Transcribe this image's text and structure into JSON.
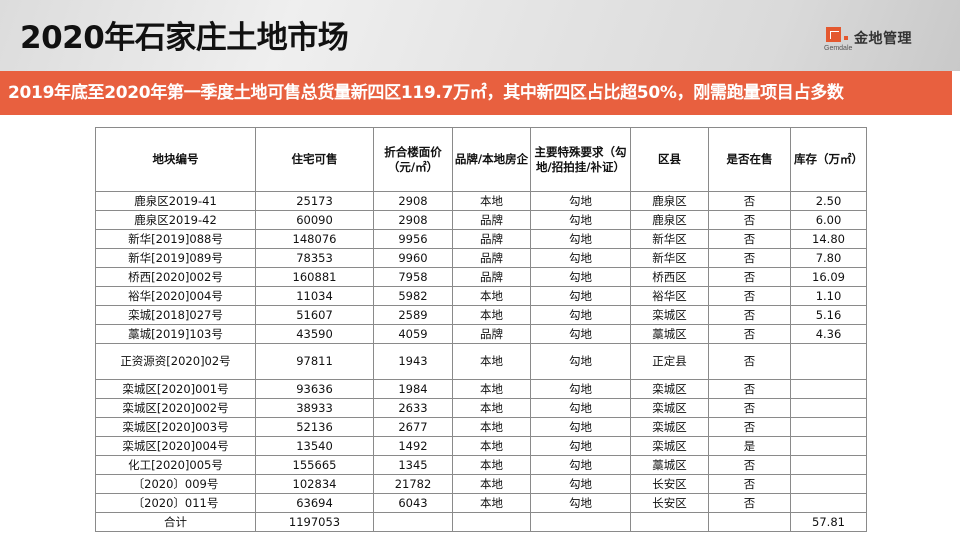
{
  "header": {
    "title": "2020年石家庄土地市场",
    "logo": {
      "icon": "gemdale-logo-icon",
      "english": "Gemdale",
      "chinese": "金地管理",
      "color": "#e4582f"
    }
  },
  "banner": {
    "text": "2019年底至2020年第一季度土地可售总货量新四区119.7万㎡，其中新四区占比超50%，刚需跑量项目占多数",
    "background": "#e8603f"
  },
  "table": {
    "columns": [
      "地块编号",
      "住宅可售",
      "折合楼面价（元/㎡）",
      "品牌/本地房企",
      "主要特殊要求（勾地/招拍挂/补证）",
      "区县",
      "是否在售",
      "库存（万㎡）"
    ],
    "rows": [
      [
        "鹿泉区2019-41",
        "25173",
        "2908",
        "本地",
        "勾地",
        "鹿泉区",
        "否",
        "2.50"
      ],
      [
        "鹿泉区2019-42",
        "60090",
        "2908",
        "品牌",
        "勾地",
        "鹿泉区",
        "否",
        "6.00"
      ],
      [
        "新华[2019]088号",
        "148076",
        "9956",
        "品牌",
        "勾地",
        "新华区",
        "否",
        "14.80"
      ],
      [
        "新华[2019]089号",
        "78353",
        "9960",
        "品牌",
        "勾地",
        "新华区",
        "否",
        "7.80"
      ],
      [
        "桥西[2020]002号",
        "160881",
        "7958",
        "品牌",
        "勾地",
        "桥西区",
        "否",
        "16.09"
      ],
      [
        "裕华[2020]004号",
        "11034",
        "5982",
        "本地",
        "勾地",
        "裕华区",
        "否",
        "1.10"
      ],
      [
        "栾城[2018]027号",
        "51607",
        "2589",
        "本地",
        "勾地",
        "栾城区",
        "否",
        "5.16"
      ],
      [
        "藁城[2019]103号",
        "43590",
        "4059",
        "品牌",
        "勾地",
        "藁城区",
        "否",
        "4.36"
      ],
      [
        "正资源资[2020]02号",
        "97811",
        "1943",
        "本地",
        "勾地",
        "正定县",
        "否",
        ""
      ],
      [
        "栾城区[2020]001号",
        "93636",
        "1984",
        "本地",
        "勾地",
        "栾城区",
        "否",
        ""
      ],
      [
        "栾城区[2020]002号",
        "38933",
        "2633",
        "本地",
        "勾地",
        "栾城区",
        "否",
        ""
      ],
      [
        "栾城区[2020]003号",
        "52136",
        "2677",
        "本地",
        "勾地",
        "栾城区",
        "否",
        ""
      ],
      [
        "栾城区[2020]004号",
        "13540",
        "1492",
        "本地",
        "勾地",
        "栾城区",
        "是",
        ""
      ],
      [
        "化工[2020]005号",
        "155665",
        "1345",
        "本地",
        "勾地",
        "藁城区",
        "否",
        ""
      ],
      [
        "〔2020〕009号",
        "102834",
        "21782",
        "本地",
        "勾地",
        "长安区",
        "否",
        ""
      ],
      [
        "〔2020〕011号",
        "63694",
        "6043",
        "本地",
        "勾地",
        "长安区",
        "否",
        ""
      ]
    ],
    "total": [
      "合计",
      "1197053",
      "",
      "",
      "",
      "",
      "",
      "57.81"
    ]
  }
}
